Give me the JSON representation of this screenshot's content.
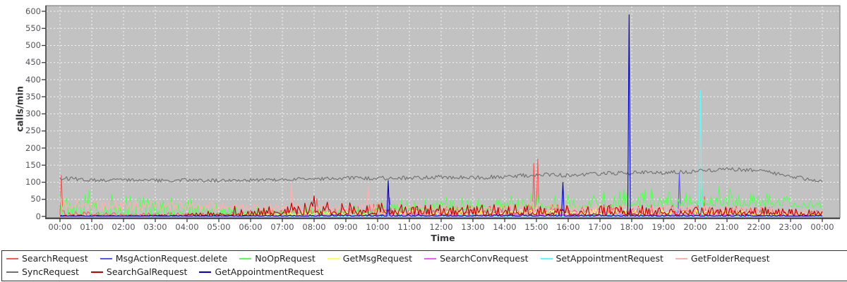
{
  "chart_data": {
    "type": "line",
    "title": "",
    "xlabel": "Time",
    "ylabel": "calls/min",
    "ylim": [
      0,
      600
    ],
    "yticks": [
      0,
      50,
      100,
      150,
      200,
      250,
      300,
      350,
      400,
      450,
      500,
      550,
      600
    ],
    "xtick_labels": [
      "00:00",
      "01:00",
      "02:00",
      "03:00",
      "04:00",
      "05:00",
      "06:00",
      "07:00",
      "08:00",
      "09:00",
      "10:00",
      "11:00",
      "12:00",
      "13:00",
      "14:00",
      "15:00",
      "16:00",
      "17:00",
      "18:00",
      "19:00",
      "20:00",
      "21:00",
      "22:00",
      "23:00",
      "00:00"
    ],
    "x_range_hours": [
      0,
      24
    ],
    "sample_minutes": 2.5,
    "grid": "dashed-white",
    "legend_position": "bottom",
    "plot_bg_color": "#c2c2c2",
    "grid_color": "#ffffff",
    "axis_text_color": "#55555d",
    "series": [
      {
        "name": "SearchRequest",
        "color": "#ff5555",
        "mode": "pos",
        "skew": 2.6,
        "width": 1,
        "hourly_baseline": [
          4,
          3,
          3,
          3,
          3,
          3,
          4,
          5,
          6,
          6,
          8,
          8,
          8,
          8,
          8,
          10,
          8,
          8,
          8,
          8,
          8,
          8,
          8,
          6,
          6
        ],
        "hourly_noise": [
          15,
          10,
          8,
          8,
          8,
          10,
          15,
          20,
          30,
          25,
          30,
          25,
          25,
          25,
          30,
          30,
          28,
          28,
          28,
          25,
          28,
          28,
          25,
          20,
          18
        ],
        "spikes": [
          [
            0.06,
            120
          ],
          [
            8.1,
            52
          ],
          [
            10.35,
            92
          ],
          [
            14.92,
            155
          ],
          [
            15.06,
            168
          ],
          [
            20.3,
            58
          ]
        ]
      },
      {
        "name": "MsgActionRequest.delete",
        "color": "#5555ff",
        "mode": "pos",
        "skew": 2.6,
        "width": 1,
        "hourly_baseline": [
          1,
          1,
          1,
          1,
          1,
          1,
          1,
          1,
          1,
          2,
          2,
          2,
          2,
          2,
          2,
          2,
          2,
          2,
          2,
          2,
          2,
          2,
          2,
          1,
          1
        ],
        "hourly_noise": [
          3,
          2,
          2,
          2,
          2,
          2,
          3,
          3,
          4,
          5,
          6,
          6,
          6,
          6,
          6,
          6,
          6,
          6,
          6,
          6,
          6,
          6,
          5,
          4,
          4
        ],
        "spikes": [
          [
            10.36,
            55
          ],
          [
            19.52,
            128
          ]
        ]
      },
      {
        "name": "NoOpRequest",
        "color": "#55ff55",
        "mode": "pos",
        "skew": 3.0,
        "width": 1,
        "hourly_baseline": [
          5,
          5,
          5,
          4,
          4,
          4,
          4,
          5,
          6,
          8,
          10,
          18,
          20,
          20,
          22,
          25,
          25,
          28,
          30,
          30,
          30,
          32,
          30,
          28,
          24
        ],
        "hourly_noise": [
          85,
          75,
          62,
          52,
          50,
          45,
          30,
          26,
          28,
          30,
          35,
          40,
          40,
          40,
          45,
          45,
          45,
          50,
          55,
          50,
          55,
          55,
          45,
          32,
          22
        ],
        "spikes": []
      },
      {
        "name": "GetMsgRequest",
        "color": "#ffff55",
        "mode": "pos",
        "skew": 2.2,
        "width": 1,
        "hourly_baseline": [
          1,
          1,
          1,
          1,
          1,
          1,
          2,
          3,
          4,
          4,
          5,
          5,
          5,
          5,
          5,
          5,
          5,
          5,
          5,
          5,
          5,
          5,
          4,
          3,
          3
        ],
        "hourly_noise": [
          3,
          3,
          3,
          3,
          3,
          4,
          6,
          9,
          12,
          13,
          15,
          15,
          15,
          15,
          16,
          16,
          16,
          18,
          18,
          16,
          15,
          14,
          12,
          9,
          8
        ],
        "spikes": []
      },
      {
        "name": "SearchConvRequest",
        "color": "#ff55ff",
        "mode": "pos",
        "skew": 2.4,
        "width": 1,
        "hourly_baseline": [
          1,
          1,
          1,
          1,
          1,
          1,
          1,
          1,
          1,
          1,
          2,
          2,
          2,
          2,
          2,
          2,
          2,
          2,
          2,
          2,
          2,
          2,
          2,
          1,
          1
        ],
        "hourly_noise": [
          3,
          2,
          2,
          2,
          2,
          2,
          3,
          4,
          6,
          6,
          8,
          8,
          8,
          8,
          8,
          8,
          8,
          8,
          8,
          8,
          8,
          7,
          6,
          5,
          4
        ],
        "spikes": []
      },
      {
        "name": "SetAppointmentRequest",
        "color": "#55ffff",
        "mode": "pos",
        "skew": 2.4,
        "width": 1,
        "hourly_baseline": [
          1,
          1,
          1,
          1,
          1,
          1,
          1,
          1,
          1,
          1,
          1,
          1,
          1,
          1,
          1,
          1,
          1,
          1,
          1,
          1,
          1,
          1,
          1,
          1,
          1
        ],
        "hourly_noise": [
          2,
          2,
          2,
          2,
          2,
          2,
          2,
          3,
          4,
          4,
          5,
          5,
          5,
          5,
          5,
          5,
          5,
          5,
          5,
          5,
          5,
          4,
          4,
          3,
          3
        ],
        "spikes": [
          [
            20.18,
            370
          ]
        ]
      },
      {
        "name": "GetFolderRequest",
        "color": "#ffafaf",
        "mode": "pos",
        "skew": 1.0,
        "width": 1,
        "hourly_baseline": [
          18,
          18,
          16,
          15,
          15,
          15,
          12,
          12,
          12,
          12,
          14,
          12,
          12,
          12,
          12,
          14,
          12,
          12,
          12,
          12,
          12,
          12,
          10,
          8,
          8
        ],
        "hourly_noise": [
          35,
          32,
          30,
          30,
          30,
          28,
          25,
          28,
          25,
          25,
          30,
          25,
          22,
          22,
          25,
          30,
          25,
          25,
          25,
          22,
          22,
          22,
          20,
          15,
          12
        ],
        "spikes": [
          [
            7.3,
            95
          ],
          [
            9.7,
            88
          ]
        ]
      },
      {
        "name": "SyncRequest",
        "color": "#707070",
        "mode": "sym",
        "skew": 1.0,
        "width": 1,
        "hourly_baseline": [
          112,
          107,
          106,
          105,
          106,
          105,
          106,
          108,
          110,
          112,
          112,
          113,
          115,
          113,
          117,
          122,
          120,
          125,
          128,
          128,
          132,
          139,
          134,
          116,
          104
        ],
        "hourly_noise": [
          6,
          5,
          5,
          5,
          5,
          5,
          5,
          5,
          5,
          5,
          6,
          6,
          6,
          6,
          6,
          6,
          6,
          6,
          6,
          6,
          6,
          6,
          6,
          6,
          5
        ],
        "spikes": []
      },
      {
        "name": "SearchGalRequest",
        "color": "#c00000",
        "mode": "pos",
        "skew": 2.6,
        "width": 1,
        "hourly_baseline": [
          1,
          1,
          1,
          1,
          1,
          2,
          3,
          4,
          5,
          5,
          5,
          5,
          4,
          4,
          5,
          5,
          4,
          4,
          4,
          4,
          4,
          4,
          4,
          3,
          3
        ],
        "hourly_noise": [
          4,
          3,
          3,
          4,
          6,
          20,
          25,
          35,
          40,
          35,
          40,
          40,
          35,
          30,
          35,
          30,
          30,
          30,
          30,
          28,
          30,
          28,
          25,
          20,
          18
        ],
        "spikes": [
          [
            5.5,
            30
          ],
          [
            8.0,
            60
          ]
        ]
      },
      {
        "name": "GetAppointmentRequest",
        "color": "#0000c0",
        "mode": "pos",
        "skew": 2.6,
        "width": 1,
        "hourly_baseline": [
          1,
          1,
          1,
          1,
          1,
          1,
          1,
          1,
          1,
          1,
          1,
          1,
          1,
          1,
          1,
          1,
          1,
          1,
          1,
          1,
          1,
          1,
          1,
          1,
          1
        ],
        "hourly_noise": [
          2,
          2,
          2,
          2,
          2,
          2,
          2,
          3,
          4,
          4,
          4,
          4,
          4,
          4,
          4,
          4,
          4,
          4,
          4,
          4,
          4,
          4,
          4,
          3,
          3
        ],
        "spikes": [
          [
            10.32,
            105
          ],
          [
            15.82,
            100
          ],
          [
            17.92,
            590
          ]
        ]
      }
    ]
  }
}
